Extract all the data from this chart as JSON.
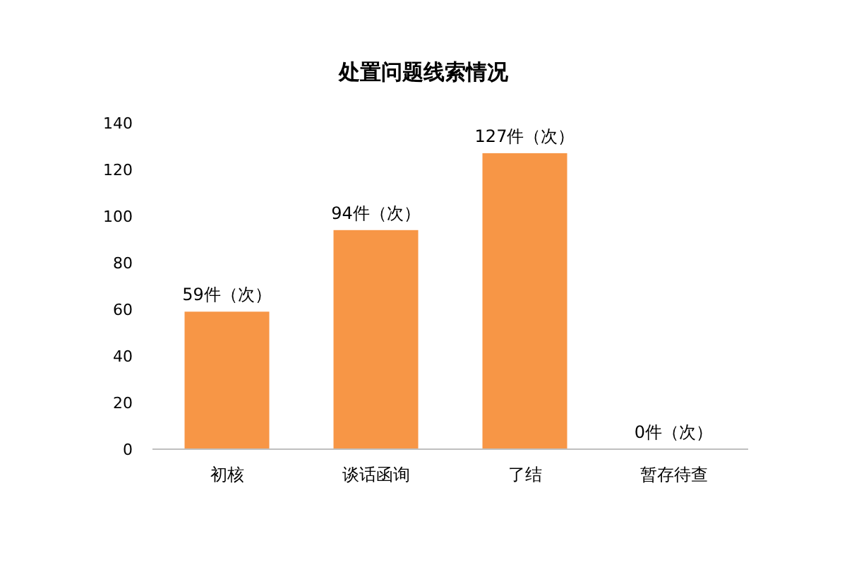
{
  "chart_data": {
    "type": "bar",
    "title": "处置问题线索情况",
    "categories": [
      "初核",
      "谈话函询",
      "了结",
      "暂存待查"
    ],
    "values": [
      59,
      94,
      127,
      0
    ],
    "value_labels": [
      "59件（次）",
      "94件（次）",
      "127件（次）",
      "0件（次）"
    ],
    "color": "#f79646",
    "ylim": [
      0,
      140
    ],
    "yticks": [
      0,
      20,
      40,
      60,
      80,
      100,
      120,
      140
    ],
    "grid": false
  }
}
